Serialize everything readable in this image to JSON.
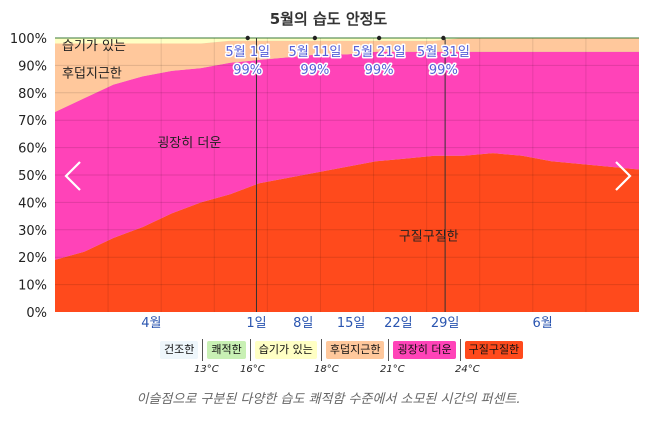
{
  "title": "5월의 습도 안정도",
  "caption": "이슬점으로 구분된 다양한 습도 쾌적함 수준에서 소모된 시간의 퍼센트.",
  "chart_data": {
    "type": "area",
    "stacking": "percent",
    "ylim": [
      0,
      100
    ],
    "yticks": [
      "0%",
      "10%",
      "20%",
      "30%",
      "40%",
      "50%",
      "60%",
      "70%",
      "80%",
      "90%",
      "100%"
    ],
    "xticks": [
      {
        "label": "4월",
        "pos": 0.165
      },
      {
        "label": "1일",
        "pos": 0.345
      },
      {
        "label": "8일",
        "pos": 0.425
      },
      {
        "label": "15일",
        "pos": 0.507
      },
      {
        "label": "22일",
        "pos": 0.588
      },
      {
        "label": "29일",
        "pos": 0.668
      },
      {
        "label": "6월",
        "pos": 0.835
      }
    ],
    "x": [
      0,
      0.05,
      0.1,
      0.15,
      0.2,
      0.25,
      0.3,
      0.35,
      0.4,
      0.45,
      0.5,
      0.55,
      0.6,
      0.65,
      0.7,
      0.75,
      0.8,
      0.85,
      0.9,
      0.95,
      1.0
    ],
    "series": [
      {
        "name": "구질구질한",
        "color": "#ff4a1c",
        "values": [
          19,
          22,
          27,
          31,
          36,
          40,
          43,
          47,
          49,
          51,
          53,
          55,
          56,
          57,
          57,
          58,
          57,
          55,
          54,
          53,
          52
        ]
      },
      {
        "name": "굉장히 더운",
        "color": "#ff43b8",
        "values": [
          54,
          56,
          56,
          55,
          52,
          49,
          48,
          45,
          44,
          43,
          41,
          40,
          39,
          38,
          38,
          37,
          38,
          40,
          41,
          42,
          43
        ]
      },
      {
        "name": "후덥지근한",
        "color": "#ffc89c",
        "values": [
          25,
          20,
          15,
          12,
          10,
          9,
          8,
          7,
          6,
          5,
          5,
          4,
          4,
          4,
          5,
          5,
          5,
          5,
          5,
          5,
          5
        ]
      },
      {
        "name": "습기가 있는",
        "color": "#ffffc4",
        "values": [
          2,
          2,
          2,
          2,
          2,
          2,
          1,
          1,
          1,
          1,
          1,
          1,
          1,
          1,
          0,
          0,
          0,
          0,
          0,
          0,
          0
        ]
      },
      {
        "name": "쾌적한",
        "color": "#c8f0b4",
        "values": [
          0,
          0,
          0,
          0,
          0,
          0,
          0,
          0,
          0,
          0,
          0,
          0,
          0,
          0,
          0,
          0,
          0,
          0,
          0,
          0,
          0
        ]
      }
    ],
    "band_labels": [
      {
        "text": "습기가 있는",
        "pos": 0.07,
        "y": 97.5
      },
      {
        "text": "후덥지근한",
        "pos": 0.07,
        "y": 87.5
      },
      {
        "text": "굉장히 더운",
        "pos": 0.23,
        "y": 62
      },
      {
        "text": "구질구질한",
        "pos": 0.64,
        "y": 28
      }
    ],
    "annotations": [
      {
        "date": "5월 1일",
        "value": "99%",
        "pos": 0.33
      },
      {
        "date": "5월 11일",
        "value": "99%",
        "pos": 0.445
      },
      {
        "date": "5월 21일",
        "value": "99%",
        "pos": 0.555
      },
      {
        "date": "5월 31일",
        "value": "99%",
        "pos": 0.665
      }
    ],
    "month_markers": [
      0.345,
      0.668
    ],
    "grid": true,
    "legend": [
      {
        "label": "건조한",
        "color": "#eef6fb"
      },
      {
        "label": "쾌적한",
        "color": "#c8f0b4"
      },
      {
        "label": "습기가 있는",
        "color": "#ffffc4"
      },
      {
        "label": "후덥지근한",
        "color": "#ffc89c"
      },
      {
        "label": "굉장히 더운",
        "color": "#ff43b8"
      },
      {
        "label": "구질구질한",
        "color": "#ff4a1c"
      }
    ],
    "legend_thresholds": [
      "13°C",
      "16°C",
      "18°C",
      "21°C",
      "24°C"
    ]
  }
}
